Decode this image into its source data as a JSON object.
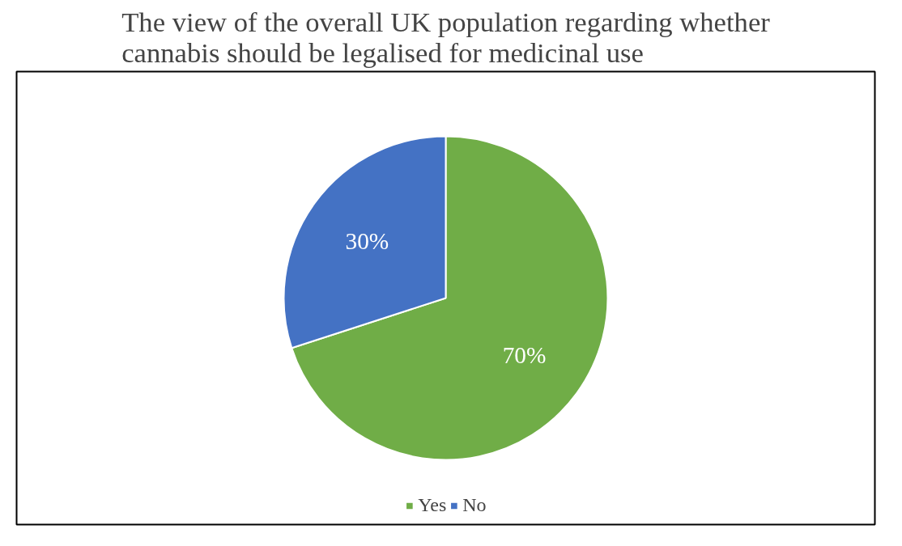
{
  "chart_data": {
    "type": "pie",
    "title": "The view of the overall UK population regarding whether\ncannabis should be legalised for medicinal use",
    "categories": [
      "Yes",
      "No"
    ],
    "values": [
      70,
      30
    ],
    "value_labels": [
      "70%",
      "30%"
    ],
    "colors": [
      "#70ad47",
      "#4472c4"
    ],
    "legend": "bottom"
  }
}
